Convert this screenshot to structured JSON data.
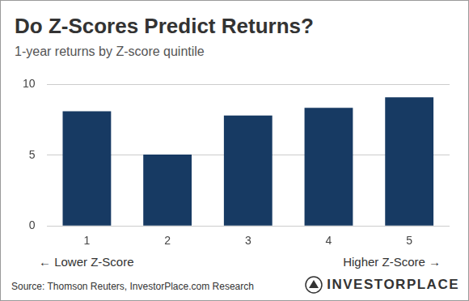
{
  "chart_data": {
    "type": "bar",
    "title": "Do Z-Scores Predict Returns?",
    "subtitle": "1-year returns by Z-score quintile",
    "categories": [
      "1",
      "2",
      "3",
      "4",
      "5"
    ],
    "values": [
      8.1,
      5.05,
      7.8,
      8.35,
      9.1
    ],
    "color": "#173a63",
    "ylim": [
      0,
      10
    ],
    "yticks": [
      0,
      5,
      10
    ],
    "grid": true,
    "annotations": [
      "← Lower Z-Score",
      "Higher Z-Score →"
    ],
    "source": "Source: Thomson Reuters, InvestorPlace.com Research",
    "brand": "INVESTORPLACE"
  }
}
